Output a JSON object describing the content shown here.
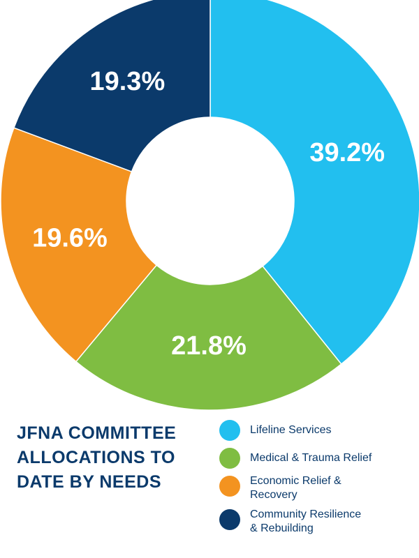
{
  "chart_data": {
    "type": "pie",
    "donut": true,
    "title": "JFNA COMMITTEE ALLOCATIONS TO DATE BY NEEDS",
    "title_lines": [
      "JFNA COMMITTEE",
      "ALLOCATIONS TO",
      "DATE BY NEEDS"
    ],
    "slices": [
      {
        "name": "Lifeline Services",
        "value": 39.2,
        "label": "39.2%",
        "color": "#22bfef"
      },
      {
        "name": "Medical & Trauma Relief",
        "value": 21.8,
        "label": "21.8%",
        "color": "#7fbd42"
      },
      {
        "name": "Economic Relief & Recovery",
        "value": 19.6,
        "label": "19.6%",
        "color": "#f39320"
      },
      {
        "name": "Community Resilience & Rebuilding",
        "value": 19.3,
        "label": "19.3%",
        "color": "#0b3a6b"
      }
    ],
    "legend": [
      {
        "lines": [
          "Lifeline Services"
        ],
        "color": "#22bfef"
      },
      {
        "lines": [
          "Medical & Trauma Relief"
        ],
        "color": "#7fbd42"
      },
      {
        "lines": [
          "Economic Relief &",
          "Recovery"
        ],
        "color": "#f39320"
      },
      {
        "lines": [
          "Community Resilience",
          "& Rebuilding"
        ],
        "color": "#0b3a6b"
      }
    ],
    "legend_position": "bottom-right",
    "start_angle": "top, clockwise"
  },
  "colors": {
    "title_text": "#0b3a6b",
    "legend_text": "#0b3a6b",
    "slice_label": "#ffffff",
    "background": "#ffffff"
  }
}
